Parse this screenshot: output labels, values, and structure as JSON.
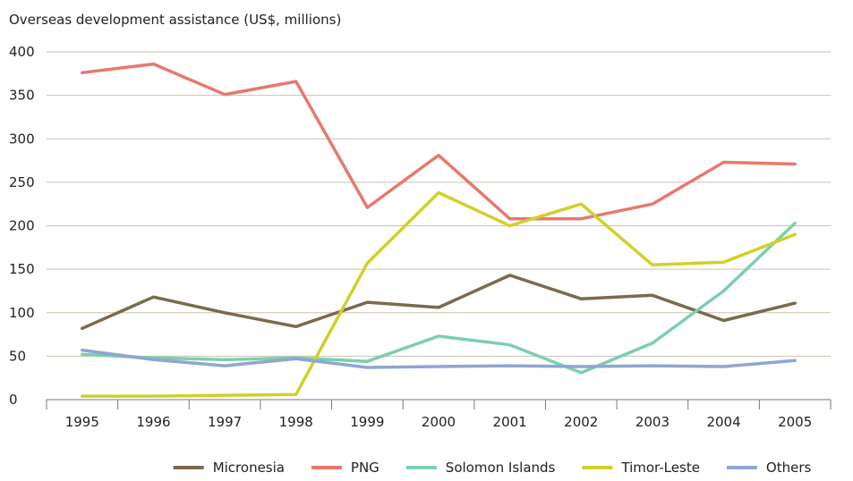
{
  "chart_data": {
    "type": "line",
    "title": "Overseas development assistance (US$, millions)",
    "xlabel": "",
    "ylabel": "",
    "x": [
      "1995",
      "1996",
      "1997",
      "1998",
      "1999",
      "2000",
      "2001",
      "2002",
      "2003",
      "2004",
      "2005"
    ],
    "ylim": [
      0,
      400
    ],
    "yticks": [
      0,
      50,
      100,
      150,
      200,
      250,
      300,
      350,
      400
    ],
    "grid": "horizontal",
    "legend_position": "bottom",
    "series": [
      {
        "name": "Micronesia",
        "color": "#7b6a4c",
        "values": [
          82,
          118,
          100,
          84,
          112,
          106,
          143,
          116,
          120,
          91,
          111
        ]
      },
      {
        "name": "PNG",
        "color": "#e8786d",
        "values": [
          376,
          386,
          351,
          366,
          221,
          281,
          208,
          208,
          225,
          273,
          271
        ]
      },
      {
        "name": "Solomon Islands",
        "color": "#7ccfae",
        "values": [
          52,
          48,
          46,
          48,
          44,
          73,
          63,
          31,
          65,
          125,
          203
        ]
      },
      {
        "name": "Timor-Leste",
        "color": "#cfd12a",
        "values": [
          4,
          4,
          5,
          6,
          157,
          238,
          200,
          225,
          155,
          158,
          190
        ]
      },
      {
        "name": "Others",
        "color": "#8ea6d2",
        "values": [
          57,
          46,
          39,
          47,
          37,
          38,
          39,
          38,
          39,
          38,
          45
        ]
      }
    ]
  }
}
